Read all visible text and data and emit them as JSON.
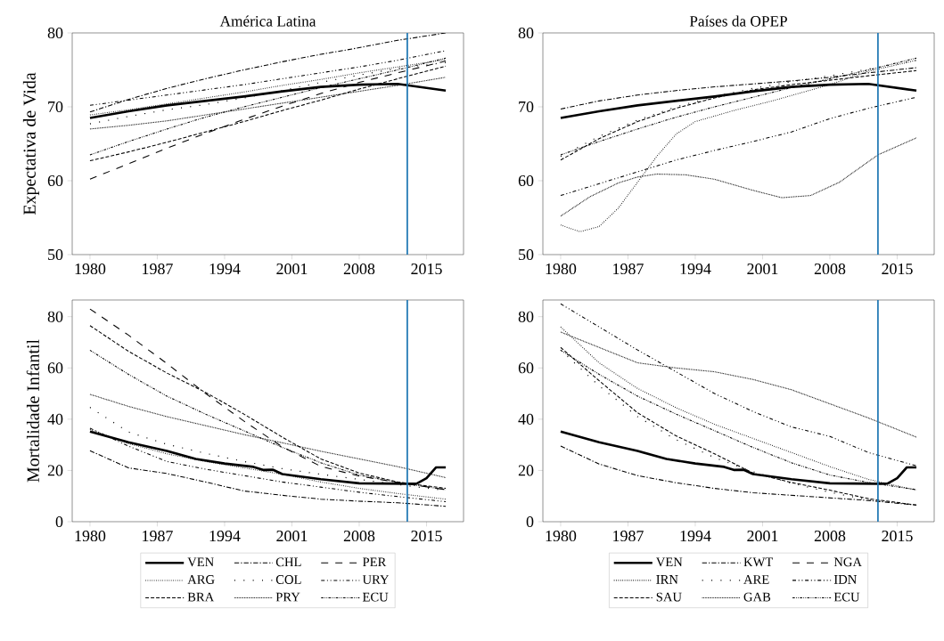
{
  "chart_data": [
    {
      "type": "line",
      "title": "América Latina",
      "ylabel": "Expectativa de Vida",
      "x": [
        1980,
        1984,
        1988,
        1992,
        1996,
        2000,
        2004,
        2008,
        2012,
        2017
      ],
      "xlim": [
        1978.15,
        2018.85
      ],
      "xticks": [
        1980,
        1987,
        1994,
        2001,
        2008,
        2015
      ],
      "ylim": [
        50,
        80
      ],
      "yticks": [
        50,
        60,
        70,
        80
      ],
      "ref_lines": [
        {
          "axis": "x",
          "value": 2013,
          "color": "#1f77b4"
        }
      ],
      "series": [
        {
          "color": "#000000",
          "line_style": "solid",
          "values": [
            68.5,
            69.4,
            70.2,
            70.8,
            71.4,
            72.1,
            72.7,
            73.0,
            73.1,
            72.2
          ]
        },
        {
          "color": "#000000",
          "line_style": "dotted",
          "values": [
            68.9,
            69.6,
            70.4,
            71.2,
            72.0,
            72.9,
            73.7,
            74.6,
            75.4,
            76.4
          ]
        },
        {
          "color": "#000000",
          "line_style": "dashed",
          "values": [
            62.7,
            63.9,
            65.2,
            66.6,
            68.0,
            69.5,
            70.9,
            72.4,
            73.8,
            75.5
          ]
        },
        {
          "color": "#000000",
          "line_style": "dashdot",
          "values": [
            69.3,
            71.0,
            72.5,
            73.8,
            75.0,
            76.1,
            77.1,
            78.0,
            79.0,
            80.0
          ]
        },
        {
          "color": "#000000",
          "line_style": "loosely dotted",
          "values": [
            67.7,
            68.7,
            69.6,
            70.3,
            71.2,
            72.2,
            73.3,
            74.3,
            75.2,
            76.0
          ]
        },
        {
          "color": "#000000",
          "line_style": "densely dotted",
          "values": [
            67.0,
            67.5,
            68.1,
            68.9,
            69.7,
            70.5,
            71.3,
            72.1,
            72.9,
            74.0
          ]
        },
        {
          "color": "#000000",
          "line_style": "loosely dashed",
          "values": [
            60.2,
            62.3,
            64.4,
            66.4,
            68.3,
            70.1,
            71.8,
            73.3,
            74.6,
            76.2
          ]
        },
        {
          "color": "#000000",
          "line_style": "dashdotdot",
          "values": [
            70.2,
            70.9,
            71.6,
            72.3,
            73.0,
            73.8,
            74.6,
            75.4,
            76.3,
            77.6
          ]
        },
        {
          "color": "#000000",
          "line_style": "densely dashdotdot",
          "values": [
            63.5,
            65.3,
            67.0,
            68.6,
            70.0,
            71.3,
            72.6,
            73.8,
            75.0,
            76.6
          ]
        }
      ]
    },
    {
      "type": "line",
      "title": "Países da OPEP",
      "x": [
        1980,
        1984,
        1988,
        1992,
        1996,
        2000,
        2004,
        2008,
        2012,
        2017
      ],
      "xlim": [
        1978.15,
        2018.85
      ],
      "xticks": [
        1980,
        1987,
        1994,
        2001,
        2008,
        2015
      ],
      "ylim": [
        50,
        80
      ],
      "yticks": [
        50,
        60,
        70,
        80
      ],
      "ref_lines": [
        {
          "axis": "x",
          "value": 2013,
          "color": "#1f77b4"
        }
      ],
      "series": [
        {
          "color": "#000000",
          "line_style": "solid",
          "values": [
            68.5,
            69.4,
            70.2,
            70.8,
            71.4,
            72.1,
            72.7,
            73.0,
            73.1,
            72.2
          ]
        },
        {
          "color": "#000000",
          "line_style": "dotted",
          "x": [
            1980,
            1982,
            1984,
            1986,
            1988,
            1990,
            1992,
            1994,
            1998,
            2002,
            2008,
            2012,
            2017
          ],
          "values": [
            54.0,
            53.1,
            53.8,
            56.3,
            59.8,
            63.3,
            66.3,
            68.0,
            69.5,
            70.8,
            73.0,
            74.8,
            76.3
          ]
        },
        {
          "color": "#000000",
          "line_style": "dashed",
          "values": [
            62.8,
            65.7,
            68.0,
            69.8,
            71.2,
            72.3,
            73.0,
            73.6,
            74.2,
            74.9
          ]
        },
        {
          "color": "#000000",
          "line_style": "dashdot",
          "values": [
            69.7,
            70.8,
            71.6,
            72.2,
            72.7,
            73.1,
            73.5,
            74.0,
            74.6,
            75.3
          ]
        },
        {
          "color": "#000000",
          "line_style": "loosely dotted",
          "values": [
            63.3,
            66.0,
            68.2,
            70.0,
            71.4,
            72.5,
            73.4,
            74.2,
            75.1,
            76.3
          ]
        },
        {
          "color": "#000000",
          "line_style": "densely dotted",
          "x": [
            1980,
            1983,
            1986,
            1988,
            1990,
            1993,
            1996,
            2000,
            2003,
            2006,
            2009,
            2013,
            2017
          ],
          "values": [
            55.2,
            57.8,
            59.7,
            60.5,
            60.9,
            60.8,
            60.2,
            58.7,
            57.7,
            58.0,
            59.8,
            63.5,
            65.8
          ]
        },
        {
          "color": "#000000",
          "line_style": "dashdotdot",
          "values": [
            58.0,
            59.6,
            61.2,
            62.8,
            64.1,
            65.3,
            66.6,
            68.4,
            69.8,
            71.3
          ]
        },
        {
          "color": "#000000",
          "line_style": "densely dashdotdot",
          "values": [
            63.5,
            65.3,
            67.0,
            68.6,
            70.0,
            71.3,
            72.6,
            73.8,
            75.0,
            76.6
          ]
        }
      ]
    },
    {
      "type": "line",
      "ylabel": "Mortalidade Infantil",
      "x": [
        1980,
        1984,
        1988,
        1992,
        1996,
        2000,
        2004,
        2008,
        2012,
        2017
      ],
      "xlim": [
        1978.15,
        2018.85
      ],
      "xticks": [
        1980,
        1987,
        1994,
        2001,
        2008,
        2015
      ],
      "ylim": [
        0,
        86.5
      ],
      "yticks": [
        0,
        20,
        40,
        60,
        80
      ],
      "ref_lines": [
        {
          "axis": "x",
          "value": 2013,
          "color": "#1f77b4"
        }
      ],
      "legend": "bottom",
      "series": [
        {
          "name": "VEN",
          "color": "#000000",
          "line_style": "solid",
          "x": [
            1980,
            1984,
            1988,
            1991,
            1994,
            1997,
            1998,
            1999,
            2000,
            2004,
            2008,
            2013,
            2014,
            2015,
            2016,
            2017
          ],
          "values": [
            35.2,
            31.0,
            27.6,
            24.5,
            22.7,
            21.4,
            20.2,
            20.3,
            18.6,
            16.6,
            15.0,
            14.8,
            14.9,
            17.0,
            21.2,
            21.2
          ]
        },
        {
          "name": "ARG",
          "color": "#000000",
          "line_style": "dotted",
          "values": [
            36.0,
            30.5,
            26.5,
            23.5,
            21.0,
            18.5,
            15.5,
            13.0,
            11.0,
            8.8
          ]
        },
        {
          "name": "BRA",
          "color": "#000000",
          "line_style": "dashed",
          "values": [
            76.5,
            66.5,
            58.0,
            50.5,
            42.0,
            33.0,
            24.5,
            19.0,
            15.5,
            13.0
          ]
        },
        {
          "name": "CHL",
          "color": "#000000",
          "line_style": "dashdot",
          "values": [
            27.7,
            21.0,
            18.8,
            15.5,
            12.0,
            10.3,
            8.8,
            8.0,
            7.4,
            6.0
          ]
        },
        {
          "name": "COL",
          "color": "#000000",
          "line_style": "loosely dotted",
          "values": [
            44.6,
            35.0,
            30.2,
            26.7,
            23.5,
            20.7,
            18.5,
            16.5,
            14.5,
            12.2
          ]
        },
        {
          "name": "PRY",
          "color": "#000000",
          "line_style": "densely dotted",
          "values": [
            49.7,
            45.0,
            41.0,
            37.5,
            34.0,
            30.8,
            27.5,
            24.5,
            21.5,
            17.2
          ]
        },
        {
          "name": "PER",
          "color": "#000000",
          "line_style": "loosely dashed",
          "values": [
            83.0,
            72.8,
            61.7,
            50.1,
            39.3,
            29.2,
            21.6,
            17.8,
            15.3,
            12.5
          ]
        },
        {
          "name": "URY",
          "color": "#000000",
          "line_style": "dashdotdot",
          "values": [
            36.5,
            29.5,
            23.5,
            20.5,
            18.0,
            15.5,
            13.5,
            11.5,
            9.8,
            7.8
          ]
        },
        {
          "name": "ECU",
          "color": "#000000",
          "line_style": "densely dashdotdot",
          "values": [
            66.9,
            57.5,
            49.0,
            42.0,
            35.5,
            29.0,
            23.0,
            18.2,
            15.3,
            12.5
          ]
        }
      ]
    },
    {
      "type": "line",
      "x": [
        1980,
        1984,
        1988,
        1992,
        1996,
        2000,
        2004,
        2008,
        2012,
        2017
      ],
      "xlim": [
        1978.15,
        2018.85
      ],
      "xticks": [
        1980,
        1987,
        1994,
        2001,
        2008,
        2015
      ],
      "ylim": [
        0,
        86.5
      ],
      "yticks": [
        0,
        20,
        40,
        60,
        80
      ],
      "ref_lines": [
        {
          "axis": "x",
          "value": 2013,
          "color": "#1f77b4"
        }
      ],
      "legend": "bottom",
      "series": [
        {
          "name": "VEN",
          "color": "#000000",
          "line_style": "solid",
          "x": [
            1980,
            1984,
            1988,
            1991,
            1994,
            1997,
            1998,
            1999,
            2000,
            2004,
            2008,
            2013,
            2014,
            2015,
            2016,
            2017
          ],
          "values": [
            35.2,
            31.0,
            27.6,
            24.5,
            22.7,
            21.4,
            20.2,
            20.3,
            18.6,
            16.6,
            15.0,
            14.8,
            14.9,
            17.0,
            21.2,
            21.2
          ]
        },
        {
          "name": "IRN",
          "color": "#000000",
          "line_style": "dotted",
          "values": [
            76.0,
            62.0,
            52.0,
            44.5,
            38.0,
            32.5,
            27.0,
            21.5,
            16.5,
            12.3
          ]
        },
        {
          "name": "SAU",
          "color": "#000000",
          "line_style": "dashed",
          "values": [
            68.0,
            55.0,
            42.5,
            33.5,
            26.5,
            19.0,
            15.3,
            12.3,
            9.0,
            6.5
          ]
        },
        {
          "name": "KWT",
          "color": "#000000",
          "line_style": "dashdot",
          "values": [
            29.5,
            22.5,
            18.0,
            15.2,
            13.0,
            11.3,
            10.3,
            9.3,
            8.3,
            6.5
          ]
        },
        {
          "name": "ARE",
          "color": "#000000",
          "line_style": "loosely dotted",
          "values": [
            67.0,
            53.0,
            41.0,
            32.0,
            25.0,
            19.5,
            15.0,
            11.5,
            8.5,
            6.5
          ]
        },
        {
          "name": "GAB",
          "color": "#000000",
          "line_style": "densely dotted",
          "values": [
            74.0,
            68.0,
            62.0,
            60.0,
            58.5,
            55.5,
            51.5,
            46.0,
            40.5,
            33.0
          ]
        },
        {
          "name": "NGA",
          "color": "#000000",
          "line_style": "loosely dashed",
          "values": [
            null,
            null,
            null,
            null,
            null,
            null,
            null,
            null,
            null,
            null
          ]
        },
        {
          "name": "IDN",
          "color": "#000000",
          "line_style": "dashdotdot",
          "values": [
            85.0,
            76.0,
            67.0,
            58.5,
            50.0,
            43.0,
            37.0,
            33.3,
            27.0,
            21.8
          ]
        },
        {
          "name": "ECU",
          "color": "#000000",
          "line_style": "densely dashdotdot",
          "values": [
            66.9,
            57.5,
            49.0,
            42.0,
            35.5,
            29.0,
            23.0,
            18.2,
            15.3,
            12.5
          ]
        }
      ]
    }
  ]
}
